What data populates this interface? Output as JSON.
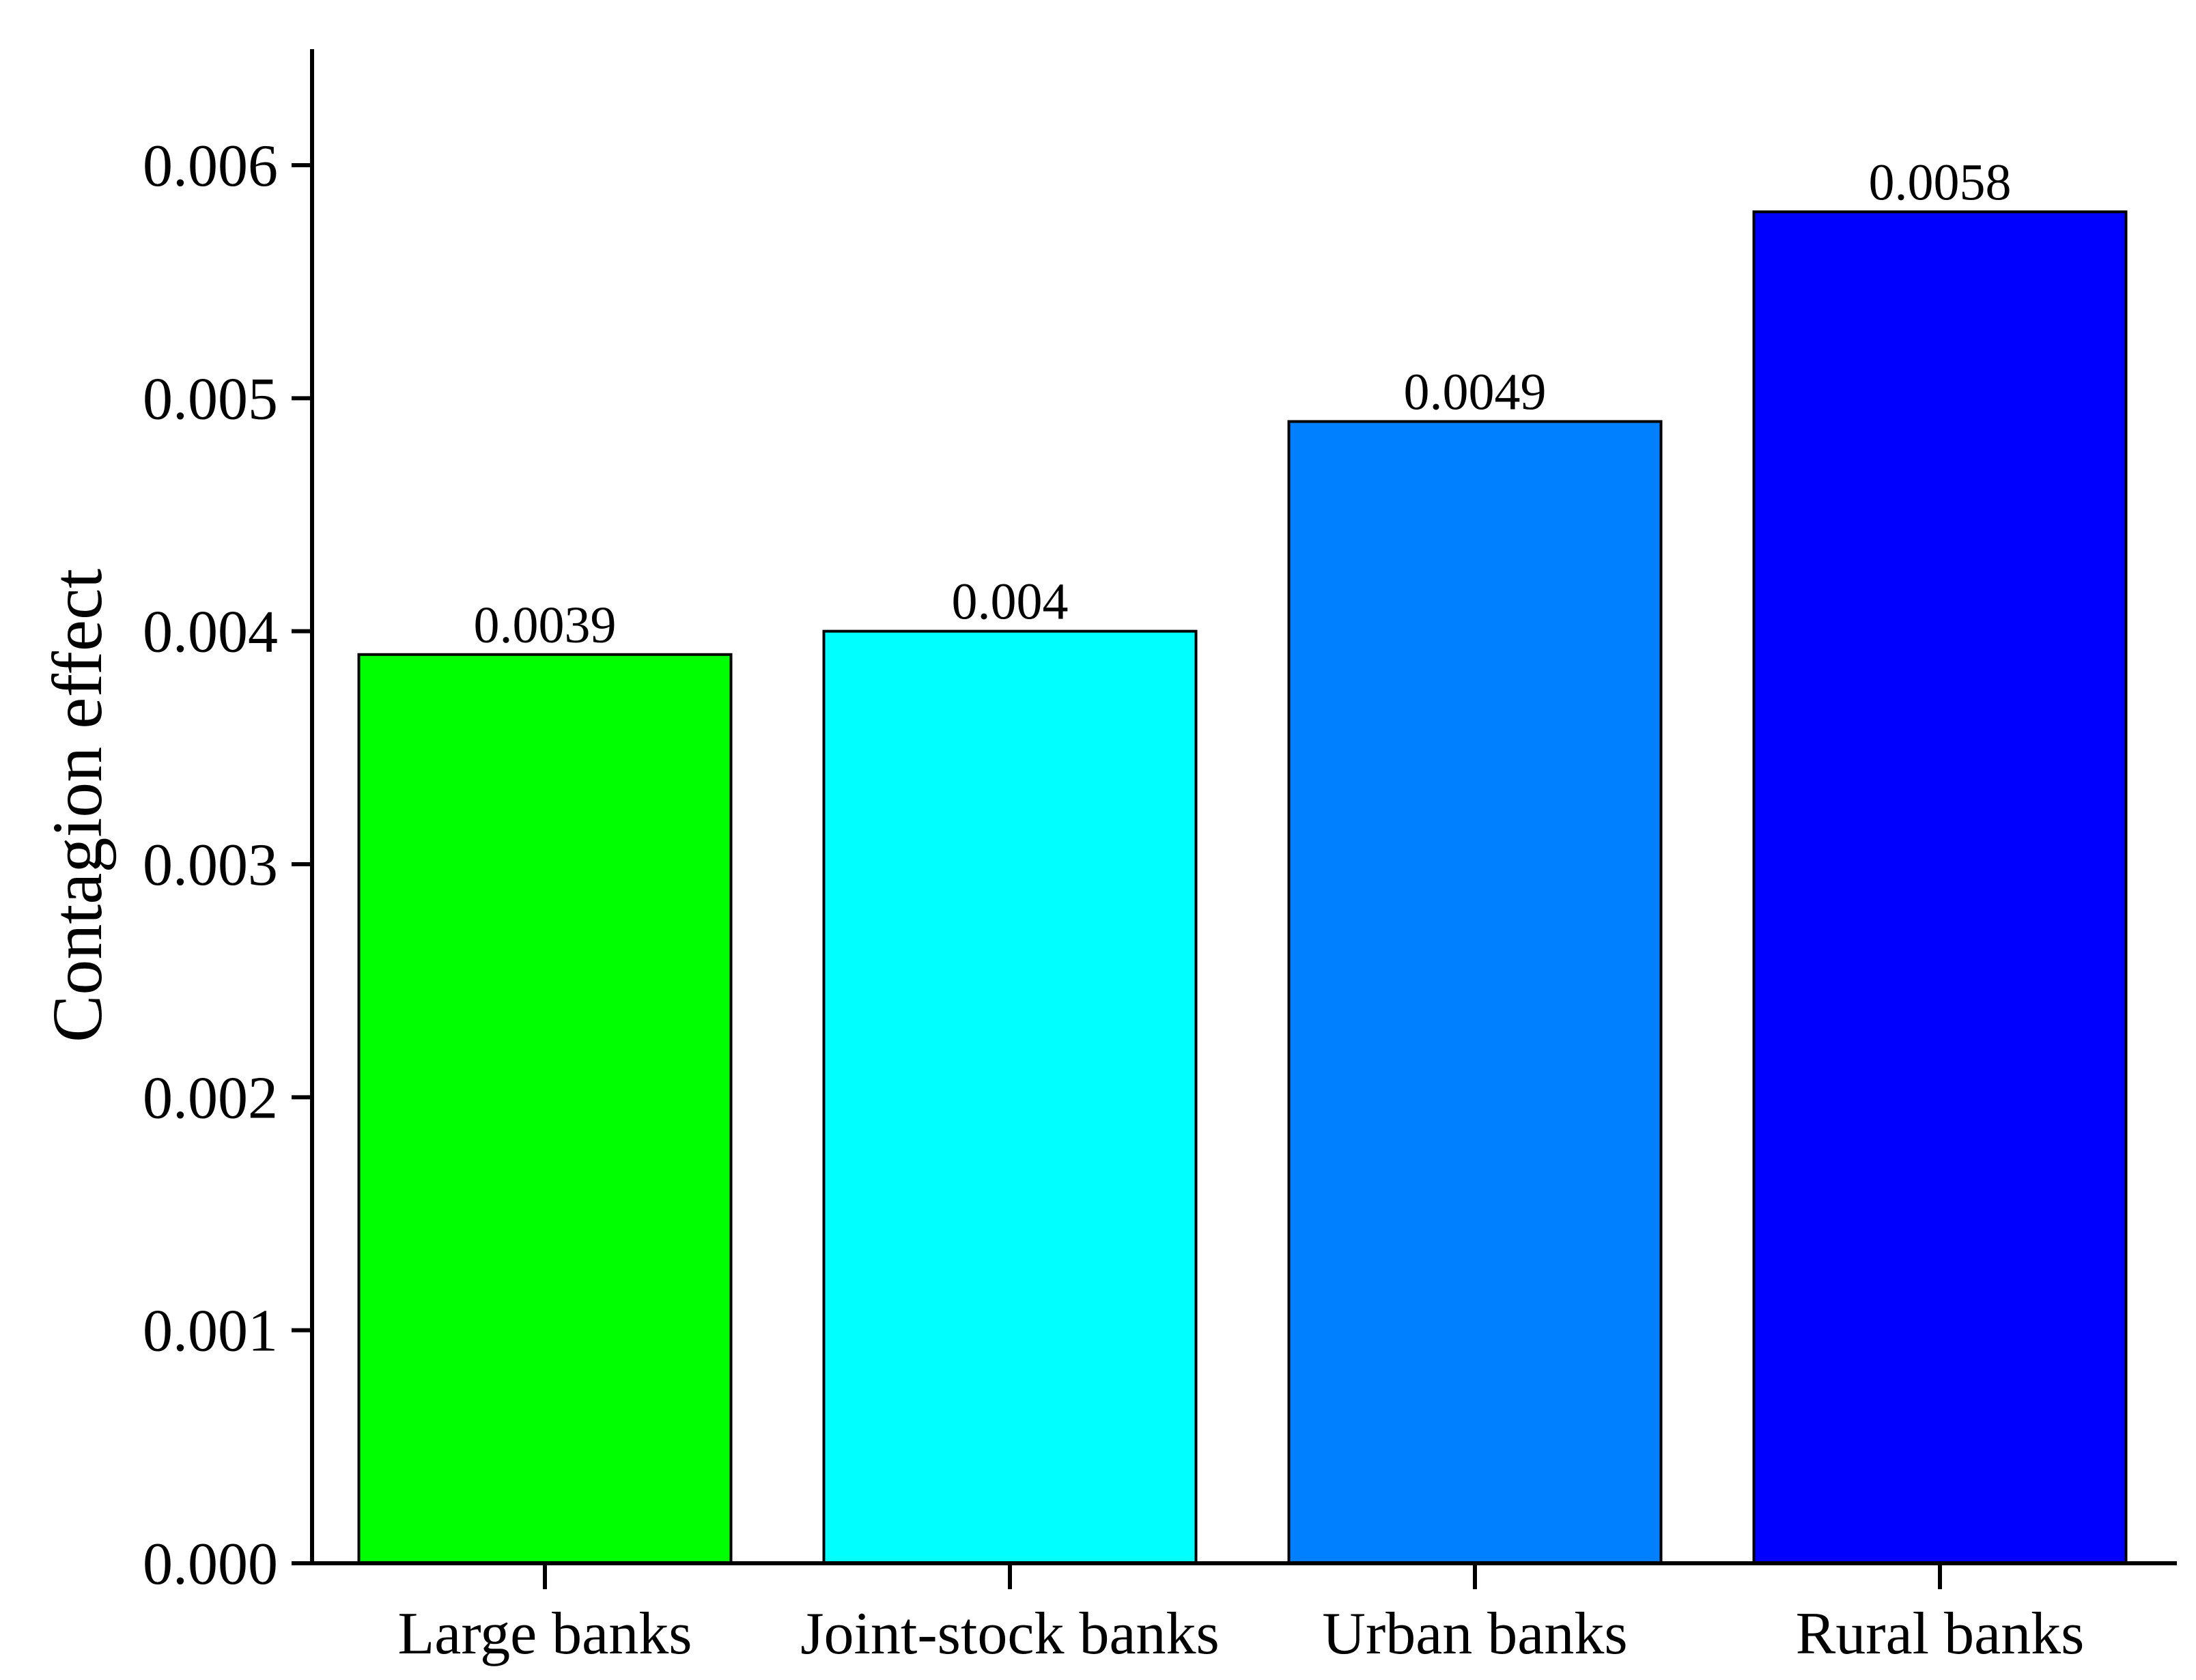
{
  "chart_data": {
    "type": "bar",
    "title": "",
    "xlabel": "",
    "ylabel": "Contagion effect",
    "categories": [
      "Large banks",
      "Joint-stock banks",
      "Urban banks",
      "Rural banks"
    ],
    "values": [
      0.0039,
      0.004,
      0.0049,
      0.0058
    ],
    "data_labels": [
      "0.0039",
      "0.004",
      "0.0049",
      "0.0058"
    ],
    "colors": [
      "#00ff00",
      "#00ffff",
      "#0080ff",
      "#0000ff"
    ],
    "ylim": [
      0,
      0.0065
    ],
    "yticks": [
      0,
      0.001,
      0.002,
      0.003,
      0.004,
      0.005,
      0.006
    ],
    "ytick_labels": [
      "0.000",
      "0.001",
      "0.002",
      "0.003",
      "0.004",
      "0.005",
      "0.006"
    ],
    "grid": false,
    "legend": "none"
  }
}
